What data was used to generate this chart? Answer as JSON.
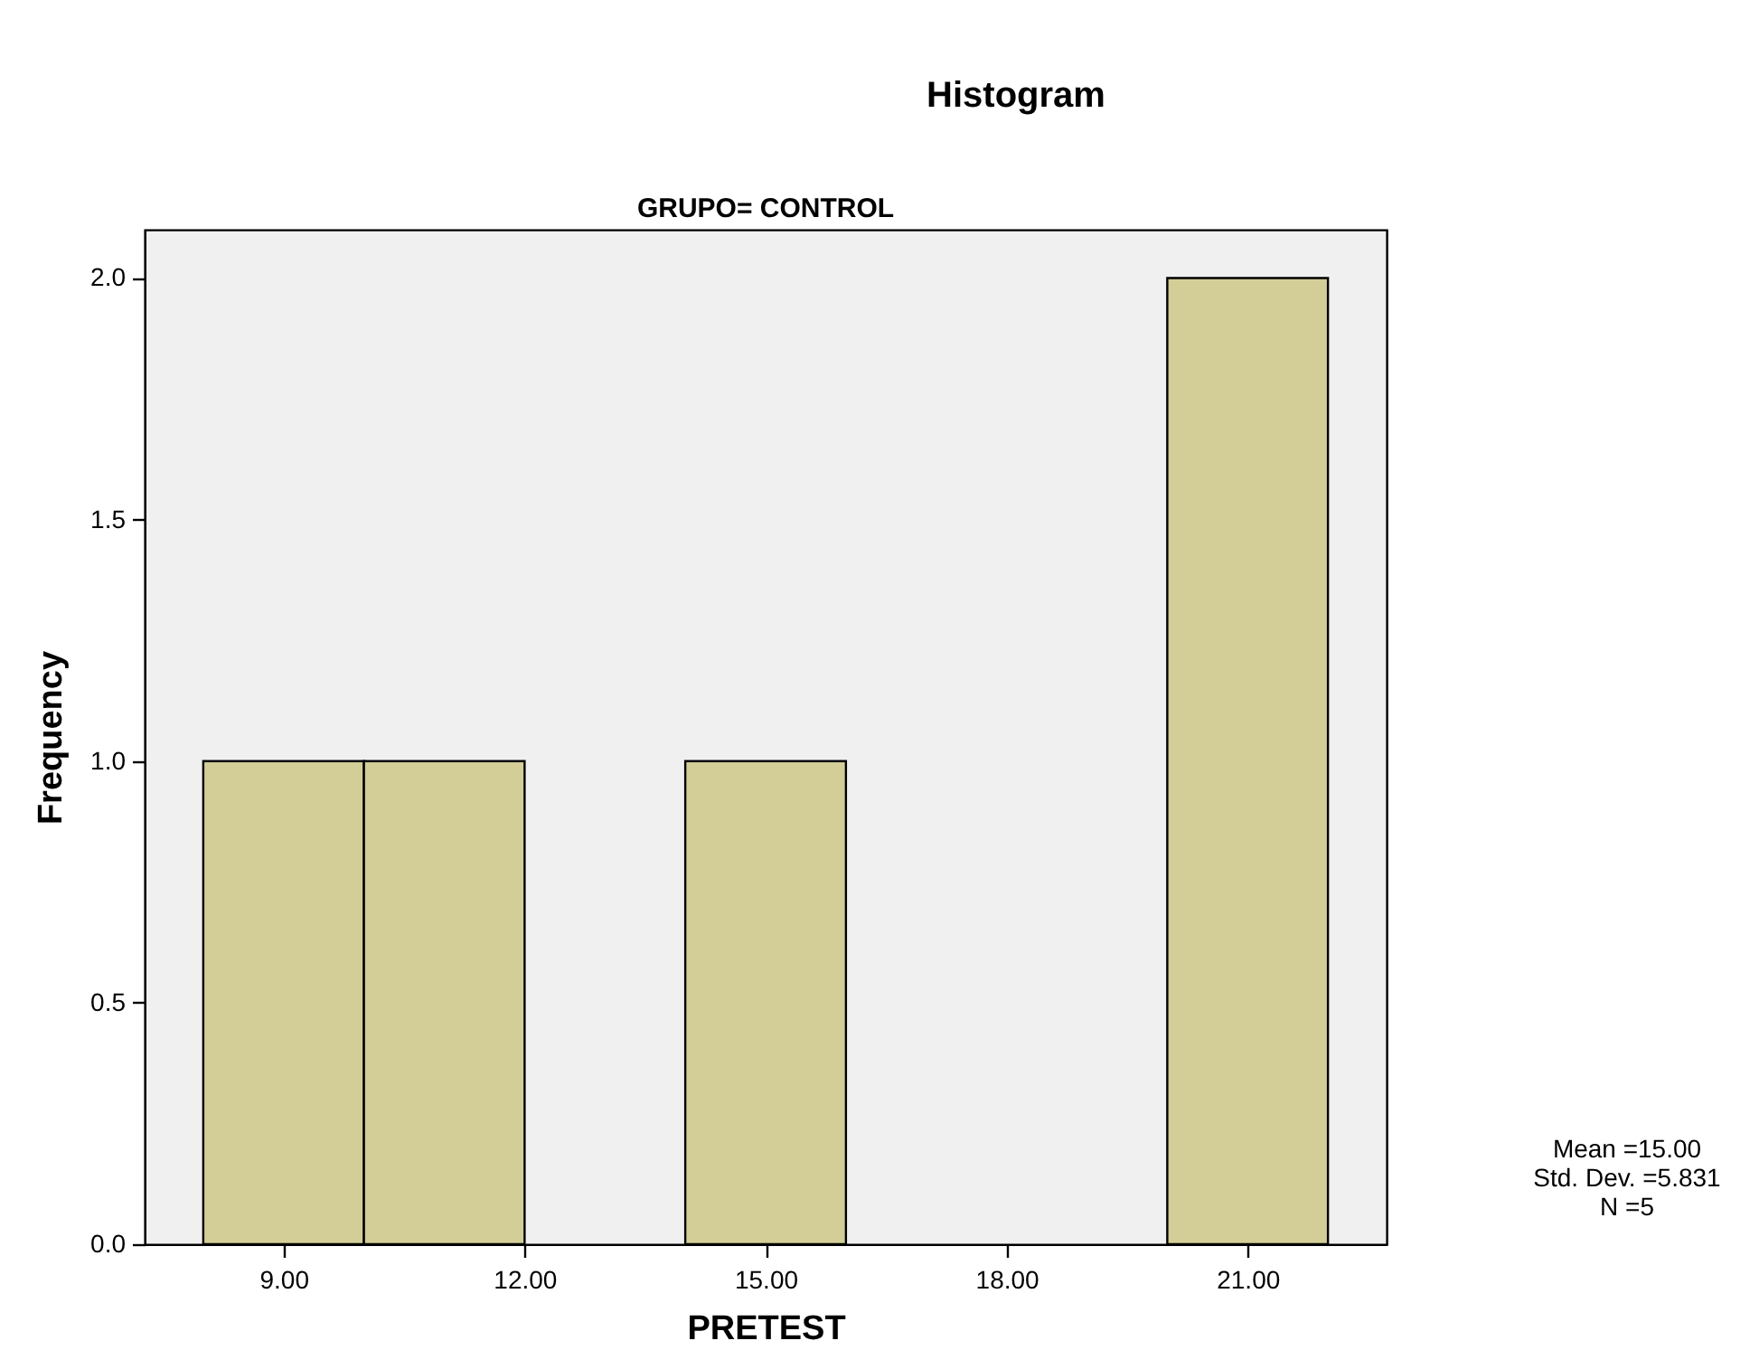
{
  "chart_data": {
    "type": "histogram",
    "title": "Histogram",
    "subtitle": "GRUPO= CONTROL",
    "xlabel": "PRETEST",
    "ylabel": "Frequency",
    "bins": [
      8,
      10,
      12,
      14,
      16,
      18,
      20,
      22
    ],
    "values": [
      1,
      1,
      0,
      1,
      0,
      0,
      2
    ],
    "color": "#d3ce97",
    "xlim": [
      7.27,
      22.73
    ],
    "xticks": [
      {
        "value": 9,
        "label": "9.00"
      },
      {
        "value": 12,
        "label": "12.00"
      },
      {
        "value": 15,
        "label": "15.00"
      },
      {
        "value": 18,
        "label": "18.00"
      },
      {
        "value": 21,
        "label": "21.00"
      }
    ],
    "ylim": [
      0,
      2.1
    ],
    "yticks": [
      {
        "value": 0,
        "label": "0.0"
      },
      {
        "value": 0.5,
        "label": "0.5"
      },
      {
        "value": 1,
        "label": "1.0"
      },
      {
        "value": 1.5,
        "label": "1.5"
      },
      {
        "value": 2,
        "label": "2.0"
      }
    ],
    "grid": false,
    "annotations": [
      "Mean =15.00",
      "Std. Dev. =5.831",
      "N =5"
    ]
  }
}
